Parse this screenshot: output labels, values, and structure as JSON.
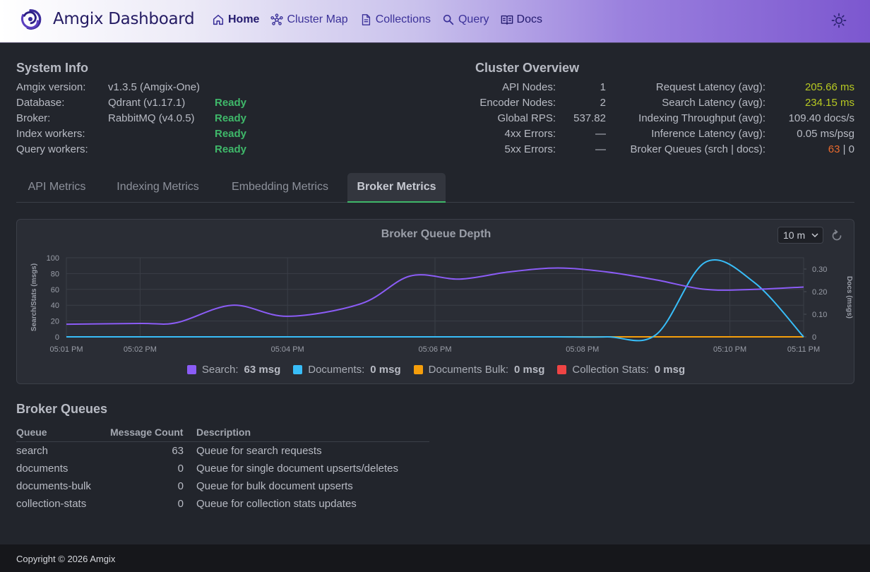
{
  "header": {
    "title": "Amgix Dashboard",
    "nav": [
      {
        "label": "Home",
        "icon": "home-icon"
      },
      {
        "label": "Cluster Map",
        "icon": "cluster-map-icon"
      },
      {
        "label": "Collections",
        "icon": "document-icon"
      },
      {
        "label": "Query",
        "icon": "search-icon"
      },
      {
        "label": "Docs",
        "icon": "book-icon"
      }
    ],
    "theme_icon": "sun-icon"
  },
  "system_info": {
    "title": "System Info",
    "rows": [
      {
        "label": "Amgix version:",
        "value": "v1.3.5 (Amgix-One)",
        "status": ""
      },
      {
        "label": "Database:",
        "value": "Qdrant (v1.17.1)",
        "status": "Ready"
      },
      {
        "label": "Broker:",
        "value": "RabbitMQ (v4.0.5)",
        "status": "Ready"
      },
      {
        "label": "Index workers:",
        "value": "",
        "status": "Ready"
      },
      {
        "label": "Query workers:",
        "value": "",
        "status": "Ready"
      }
    ]
  },
  "cluster_overview": {
    "title": "Cluster Overview",
    "left": [
      {
        "label": "API Nodes:",
        "value": "1"
      },
      {
        "label": "Encoder Nodes:",
        "value": "2"
      },
      {
        "label": "Global RPS:",
        "value": "537.82"
      },
      {
        "label": "4xx Errors:",
        "value": "—"
      },
      {
        "label": "5xx Errors:",
        "value": "—"
      }
    ],
    "right": [
      {
        "label": "Request Latency (avg):",
        "value": "205.66 ms"
      },
      {
        "label": "Search Latency (avg):",
        "value": "234.15 ms"
      },
      {
        "label": "Indexing Throughput (avg):",
        "value": "109.40 docs/s"
      },
      {
        "label": "Inference Latency (avg):",
        "value": "0.05 ms/psg"
      },
      {
        "label": "Broker Queues (srch | docs):",
        "value_a": "63",
        "sep": " | ",
        "value_b": "0"
      }
    ]
  },
  "tabs": [
    "API Metrics",
    "Indexing Metrics",
    "Embedding Metrics",
    "Broker Metrics"
  ],
  "chart": {
    "range": "10 m",
    "legend": [
      {
        "name": "Search:",
        "value": "63 msg",
        "color": "#8b5cf6"
      },
      {
        "name": "Documents:",
        "value": "0 msg",
        "color": "#38bdf8"
      },
      {
        "name": "Documents Bulk:",
        "value": "0 msg",
        "color": "#f59e0b"
      },
      {
        "name": "Collection Stats:",
        "value": "0 msg",
        "color": "#ef4444"
      }
    ]
  },
  "chart_data": {
    "type": "line",
    "title": "Broker Queue Depth",
    "ylabel": "Search/Stats (msgs)",
    "y2label": "Docs (msgs)",
    "ylim": [
      0,
      100
    ],
    "y2lim": [
      0,
      0.35
    ],
    "yticks": [
      0,
      20,
      40,
      60,
      80,
      100
    ],
    "y2ticks": [
      "0",
      "0.10",
      "0.20",
      "0.30"
    ],
    "xticks": [
      "05:01 PM",
      "05:02 PM",
      "05:04 PM",
      "05:06 PM",
      "05:08 PM",
      "05:10 PM",
      "05:11 PM"
    ],
    "x": [
      "05:01:00 PM",
      "05:02:00 PM",
      "05:02:30 PM",
      "05:03:15 PM",
      "05:04:00 PM",
      "05:05:00 PM",
      "05:05:40 PM",
      "05:06:20 PM",
      "05:07:00 PM",
      "05:07:40 PM",
      "05:08:20 PM",
      "05:09:00 PM",
      "05:09:40 PM",
      "05:10:20 PM",
      "05:11:00 PM"
    ],
    "series": [
      {
        "name": "Search",
        "axis": "left",
        "values": [
          16,
          17,
          18,
          40,
          26,
          42,
          77,
          73,
          82,
          87,
          82,
          72,
          60,
          60,
          63
        ]
      },
      {
        "name": "Documents",
        "axis": "right",
        "values": [
          0,
          0,
          0,
          0,
          0,
          0,
          0,
          0,
          0,
          0,
          0,
          0.01,
          0.33,
          0.24,
          0
        ]
      },
      {
        "name": "Documents Bulk",
        "axis": "left",
        "values": [
          0,
          0,
          0,
          0,
          0,
          0,
          0,
          0,
          0,
          0,
          0,
          0,
          0,
          0,
          0
        ]
      }
    ]
  },
  "broker_queues": {
    "title": "Broker Queues",
    "headers": [
      "Queue",
      "Message Count",
      "Description"
    ],
    "rows": [
      {
        "queue": "search",
        "count": "63",
        "description": "Queue for search requests"
      },
      {
        "queue": "documents",
        "count": "0",
        "description": "Queue for single document upserts/deletes"
      },
      {
        "queue": "documents-bulk",
        "count": "0",
        "description": "Queue for bulk document upserts"
      },
      {
        "queue": "collection-stats",
        "count": "0",
        "description": "Queue for collection stats updates"
      }
    ]
  },
  "footer": {
    "copyright": "Copyright © 2026 Amgix"
  }
}
